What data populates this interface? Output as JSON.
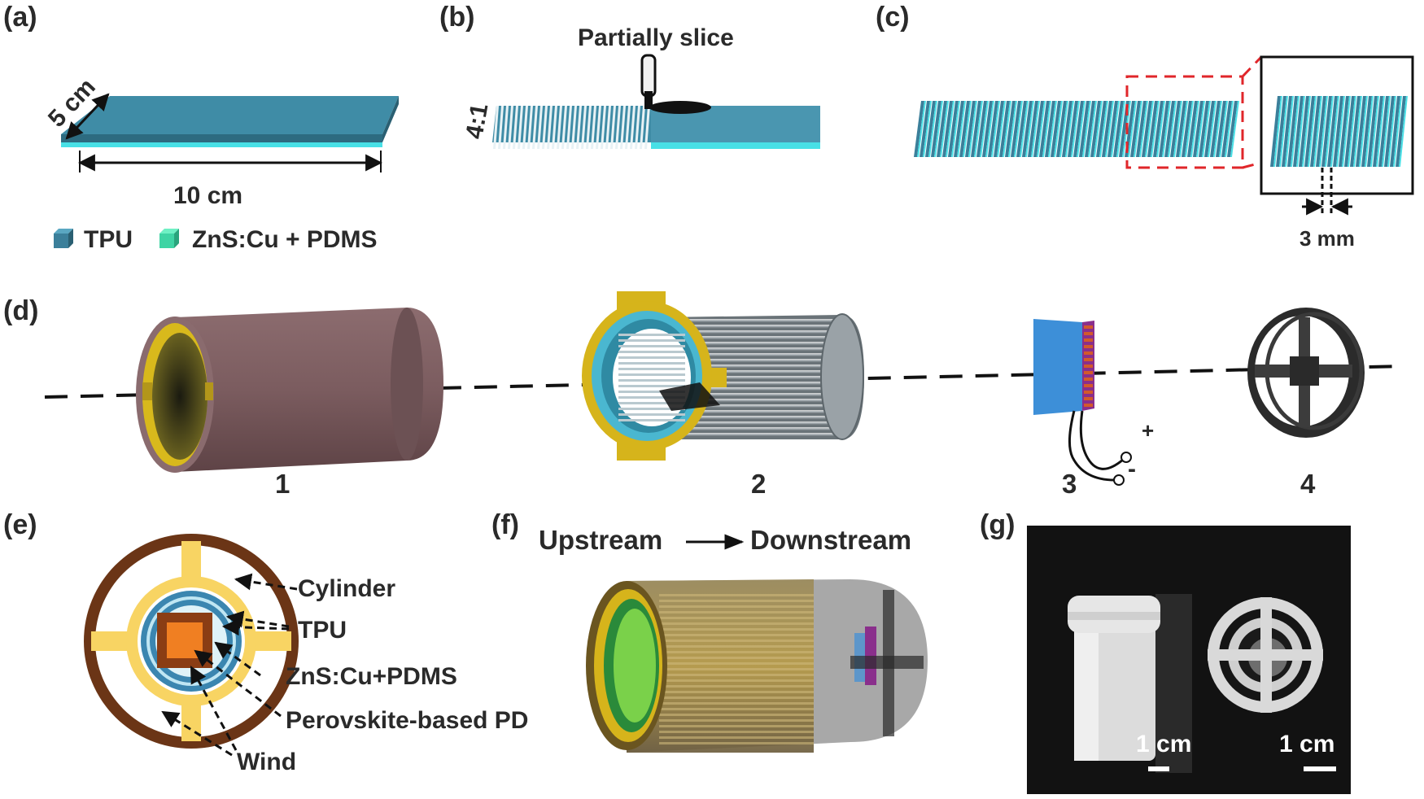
{
  "panels": {
    "a": "(a)",
    "b": "(b)",
    "c": "(c)",
    "d": "(d)",
    "e": "(e)",
    "f": "(f)",
    "g": "(g)"
  },
  "panel_a": {
    "width_label": "5 cm",
    "length_label": "10 cm",
    "legend": [
      {
        "label": "TPU",
        "color": "#3b7f9a"
      },
      {
        "label": "ZnS:Cu + PDMS",
        "color": "#3fd4a4"
      }
    ]
  },
  "panel_b": {
    "title": "Partially slice",
    "ratio_label": "4:1"
  },
  "panel_c": {
    "gap_label": "3 mm"
  },
  "panel_d": {
    "component_labels": [
      "1",
      "2",
      "3",
      "4"
    ],
    "plus_label": "+",
    "minus_label": "-"
  },
  "panel_e": {
    "callouts": [
      "Cylinder",
      "TPU",
      "ZnS:Cu+PDMS",
      "Perovskite-based PD",
      "Wind"
    ]
  },
  "panel_f": {
    "upstream": "Upstream",
    "downstream": "Downstream"
  },
  "panel_g": {
    "scale_left": "1 cm",
    "scale_right": "1 cm"
  },
  "colors": {
    "tpu": "#3b7f9a",
    "zns": "#3fd4a4",
    "cylinder": "#7e5f62",
    "holder": "#d6b41b",
    "dashed_red": "#e0262a",
    "detector_blue": "#3d8fd8",
    "detector_purple": "#8a2f8c",
    "ring_brown": "#6b3516",
    "photo_bg": "#111111"
  }
}
